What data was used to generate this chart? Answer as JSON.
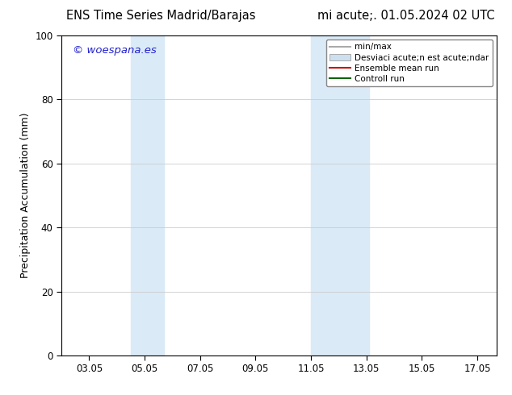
{
  "title_left": "ENS Time Series Madrid/Barajas",
  "title_right": "mi acute;. 01.05.2024 02 UTC",
  "ylabel": "Precipitation Accumulation (mm)",
  "ylim": [
    0,
    100
  ],
  "xlim": [
    2.0,
    17.7
  ],
  "xtick_labels": [
    "03.05",
    "05.05",
    "07.05",
    "09.05",
    "11.05",
    "13.05",
    "15.05",
    "17.05"
  ],
  "xtick_positions": [
    3,
    5,
    7,
    9,
    11,
    13,
    15,
    17
  ],
  "ytick_labels": [
    "0",
    "20",
    "40",
    "60",
    "80",
    "100"
  ],
  "ytick_positions": [
    0,
    20,
    40,
    60,
    80,
    100
  ],
  "shaded_bands": [
    {
      "x_start": 4.5,
      "x_end": 5.7,
      "color": "#daeaf7"
    },
    {
      "x_start": 11.0,
      "x_end": 13.1,
      "color": "#daeaf7"
    }
  ],
  "watermark_text": "© woespana.es",
  "watermark_color": "#2222cc",
  "legend_entries": [
    {
      "label": "min/max",
      "color": "#aaaaaa",
      "type": "line",
      "linewidth": 1.5
    },
    {
      "label": "Desviaci acute;n est acute;ndar",
      "color": "#cce0f0",
      "type": "patch"
    },
    {
      "label": "Ensemble mean run",
      "color": "#cc0000",
      "type": "line",
      "linewidth": 1.5
    },
    {
      "label": "Controll run",
      "color": "#006600",
      "type": "line",
      "linewidth": 1.5
    }
  ],
  "background_color": "#ffffff",
  "grid_color": "#cccccc",
  "tick_label_fontsize": 8.5,
  "axis_label_fontsize": 9,
  "title_fontsize": 10.5,
  "watermark_fontsize": 9.5
}
